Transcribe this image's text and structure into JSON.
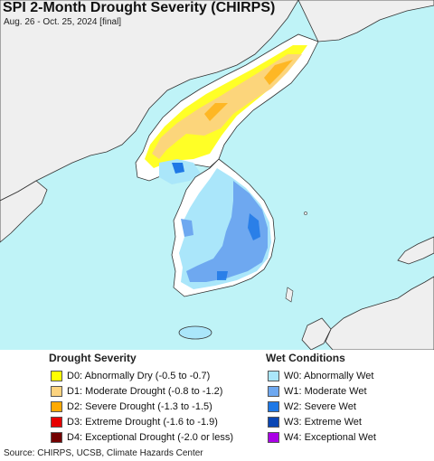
{
  "map": {
    "title": "SPI 2-Month Drought Severity (CHIRPS)",
    "subtitle": "Aug. 26 - Oct. 25, 2024 [final]",
    "colors": {
      "water": "#bff3f7",
      "land": "#ffffff",
      "foreign_land": "#efefef",
      "border": "#333333"
    }
  },
  "legend": {
    "drought_heading": "Drought Severity",
    "drought_items": [
      {
        "label": "D0: Abnormally Dry (-0.5 to -0.7)",
        "color": "#ffff00"
      },
      {
        "label": "D1: Moderate Drought (-0.8 to -1.2)",
        "color": "#fcd37f"
      },
      {
        "label": "D2: Severe Drought (-1.3 to -1.5)",
        "color": "#ffaa00"
      },
      {
        "label": "D3: Extreme Drought (-1.6 to -1.9)",
        "color": "#e60000"
      },
      {
        "label": "D4: Exceptional Drought (-2.0 or less)",
        "color": "#730000"
      }
    ],
    "wet_heading": "Wet Conditions",
    "wet_items": [
      {
        "label": "W0: Abnormally Wet",
        "color": "#aae6fa"
      },
      {
        "label": "W1: Moderate Wet",
        "color": "#6ea8f0"
      },
      {
        "label": "W2: Severe Wet",
        "color": "#1e78e6"
      },
      {
        "label": "W3: Extreme Wet",
        "color": "#0a46b4"
      },
      {
        "label": "W4: Exceptional Wet",
        "color": "#aa00e6"
      }
    ]
  },
  "footer": {
    "source": "Source: CHIRPS, UCSB, Climate Hazards Center"
  }
}
